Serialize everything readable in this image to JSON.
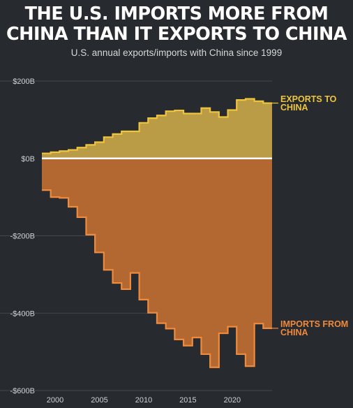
{
  "header": {
    "title_line1": "THE U.S. IMPORTS MORE FROM",
    "title_line2": "CHINA THAN IT EXPORTS TO CHINA",
    "subtitle": "U.S. annual exports/imports with China since 1999"
  },
  "colors": {
    "background": "#272a2e",
    "exports_fill": "#b99c45",
    "exports_line": "#f0c53e",
    "imports_fill": "#b36832",
    "imports_line": "#f08a3c",
    "zero_line": "#ffffff",
    "grid": "#45484d"
  },
  "chart_data": {
    "type": "area",
    "title": "THE U.S. IMPORTS MORE FROM CHINA THAN IT EXPORTS TO CHINA",
    "subtitle": "U.S. annual exports/imports with China since 1999",
    "x": [
      1999,
      2000,
      2001,
      2002,
      2003,
      2004,
      2005,
      2006,
      2007,
      2008,
      2009,
      2010,
      2011,
      2012,
      2013,
      2014,
      2015,
      2016,
      2017,
      2018,
      2019,
      2020,
      2021,
      2022,
      2023,
      2024
    ],
    "series": [
      {
        "name": "EXPORTS TO CHINA",
        "label_lines": [
          "EXPORTS TO",
          "CHINA"
        ],
        "values": [
          13,
          16,
          19,
          22,
          28,
          35,
          42,
          55,
          63,
          70,
          70,
          92,
          104,
          111,
          122,
          124,
          116,
          116,
          130,
          120,
          107,
          125,
          151,
          154,
          148,
          143
        ]
      },
      {
        "name": "IMPORTS FROM CHINA",
        "label_lines": [
          "IMPORTS FROM",
          "CHINA"
        ],
        "values": [
          -82,
          -100,
          -102,
          -125,
          -152,
          -197,
          -243,
          -288,
          -322,
          -338,
          -296,
          -365,
          -399,
          -426,
          -440,
          -468,
          -484,
          -463,
          -506,
          -540,
          -452,
          -435,
          -506,
          -537,
          -427,
          -439
        ]
      }
    ],
    "xlim": [
      1999,
      2024
    ],
    "ylim": [
      -600,
      200
    ],
    "y_ticks": [
      200,
      0,
      -200,
      -400,
      -600
    ],
    "y_tick_labels": [
      "$200B",
      "$0B",
      "-$200B",
      "-$400B",
      "-$600B"
    ],
    "x_ticks": [
      2000,
      2005,
      2010,
      2015,
      2020
    ],
    "x_tick_labels": [
      "2000",
      "2005",
      "2010",
      "2015",
      "2020"
    ],
    "grid": true,
    "legend": "direct labels at right end of each series"
  }
}
